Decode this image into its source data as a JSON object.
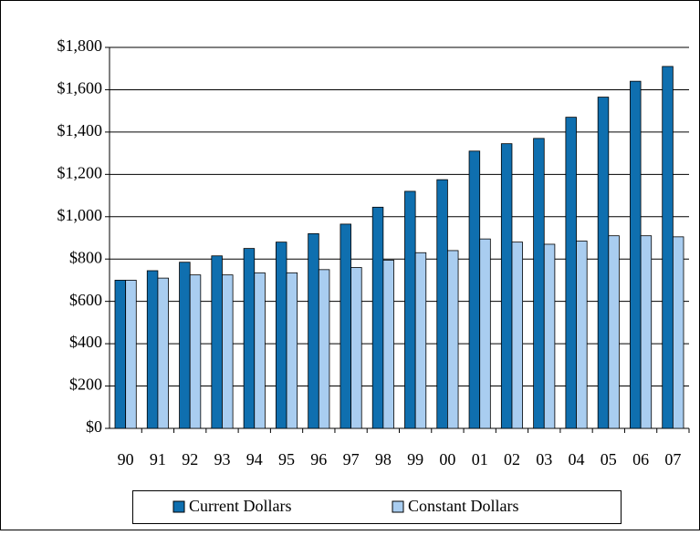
{
  "chart_data": {
    "type": "bar",
    "categories": [
      "90",
      "91",
      "92",
      "93",
      "94",
      "95",
      "96",
      "97",
      "98",
      "99",
      "00",
      "01",
      "02",
      "03",
      "04",
      "05",
      "06",
      "07"
    ],
    "series": [
      {
        "name": "Current Dollars",
        "color": "#0f6faf",
        "values": [
          700,
          745,
          785,
          815,
          850,
          880,
          920,
          965,
          1045,
          1120,
          1175,
          1310,
          1345,
          1370,
          1470,
          1565,
          1640,
          1710
        ]
      },
      {
        "name": "Constant Dollars",
        "color": "#a9cdf0",
        "values": [
          700,
          710,
          725,
          725,
          735,
          735,
          750,
          760,
          795,
          830,
          840,
          895,
          880,
          870,
          885,
          910,
          910,
          905
        ]
      }
    ],
    "ylim": [
      0,
      1800
    ],
    "yticks": [
      {
        "value": 0,
        "label": "$0"
      },
      {
        "value": 200,
        "label": "$200"
      },
      {
        "value": 400,
        "label": "$400"
      },
      {
        "value": 600,
        "label": "$600"
      },
      {
        "value": 800,
        "label": "$800"
      },
      {
        "value": 1000,
        "label": "$1,000"
      },
      {
        "value": 1200,
        "label": "$1,200"
      },
      {
        "value": 1400,
        "label": "$1,400"
      },
      {
        "value": 1600,
        "label": "$1,600"
      },
      {
        "value": 1800,
        "label": "$1,800"
      }
    ],
    "grid": true,
    "legend": "bottom"
  }
}
